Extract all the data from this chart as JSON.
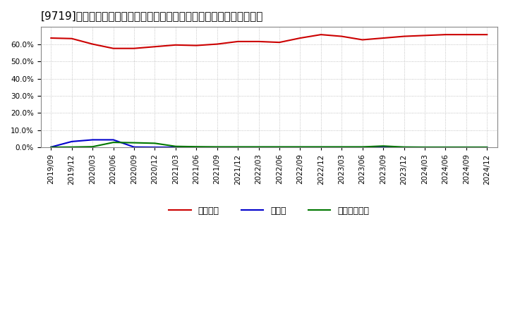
{
  "title": "[9719]　自己資本、のれん、繰延税金資産の総資産に対する比率の推移",
  "x_labels": [
    "2019/09",
    "2019/12",
    "2020/03",
    "2020/06",
    "2020/09",
    "2020/12",
    "2021/03",
    "2021/06",
    "2021/09",
    "2021/12",
    "2022/03",
    "2022/06",
    "2022/09",
    "2022/12",
    "2023/03",
    "2023/06",
    "2023/09",
    "2023/12",
    "2024/03",
    "2024/06",
    "2024/09",
    "2024/12"
  ],
  "jikoshihon": [
    63.5,
    63.2,
    60.0,
    57.5,
    57.5,
    58.5,
    59.5,
    59.2,
    60.0,
    61.5,
    61.5,
    61.0,
    63.5,
    65.5,
    64.5,
    62.5,
    63.5,
    64.5,
    65.0,
    65.5,
    65.5,
    65.5
  ],
  "noren": [
    0.3,
    3.5,
    4.5,
    4.5,
    0.3,
    0.2,
    0.2,
    0.2,
    0.2,
    0.2,
    0.2,
    0.2,
    0.2,
    0.2,
    0.2,
    0.2,
    0.2,
    0.2,
    0.2,
    0.2,
    0.2,
    0.2
  ],
  "kuenzeizei": [
    0.2,
    0.3,
    0.5,
    3.0,
    2.8,
    2.5,
    0.7,
    0.5,
    0.4,
    0.4,
    0.4,
    0.4,
    0.4,
    0.4,
    0.4,
    0.4,
    0.9,
    0.3,
    0.2,
    0.2,
    0.2,
    0.2
  ],
  "jikoshihon_color": "#cc0000",
  "noren_color": "#0000cc",
  "kuenzeizei_color": "#007700",
  "bg_color": "#ffffff",
  "grid_color": "#aaaaaa",
  "ylim": [
    0.0,
    70.0
  ],
  "yticks": [
    0.0,
    10.0,
    20.0,
    30.0,
    40.0,
    50.0,
    60.0
  ],
  "legend_labels": [
    "自己資本",
    "のれん",
    "繰延税金資産"
  ],
  "title_fontsize": 11,
  "legend_fontsize": 9,
  "tick_fontsize": 7.5
}
